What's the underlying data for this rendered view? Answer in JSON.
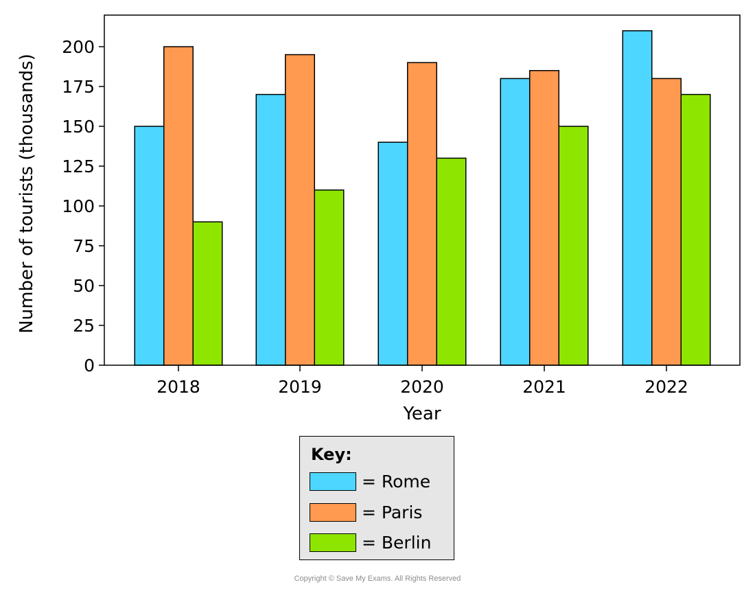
{
  "chart_data": {
    "type": "bar",
    "title": "",
    "xlabel": "Year",
    "ylabel": "Number of tourists (thousands)",
    "categories": [
      "2018",
      "2019",
      "2020",
      "2021",
      "2022"
    ],
    "series": [
      {
        "name": "Rome",
        "color": "#4dd6ff",
        "values": [
          150,
          170,
          140,
          180,
          210
        ]
      },
      {
        "name": "Paris",
        "color": "#ff9a50",
        "values": [
          200,
          195,
          190,
          185,
          180
        ]
      },
      {
        "name": "Berlin",
        "color": "#8ee600",
        "values": [
          90,
          110,
          130,
          150,
          170
        ]
      }
    ],
    "ylim": [
      0,
      220
    ],
    "yticks": [
      0,
      25,
      50,
      75,
      100,
      125,
      150,
      175,
      200
    ],
    "grid": false,
    "legend_placement": "bottom-center"
  },
  "key": {
    "title": "Key:",
    "items": [
      {
        "label": "= Rome",
        "color": "#4dd6ff"
      },
      {
        "label": "= Paris",
        "color": "#ff9a50"
      },
      {
        "label": "= Berlin",
        "color": "#8ee600"
      }
    ]
  },
  "copyright": "Copyright © Save My Exams. All Rights Reserved"
}
